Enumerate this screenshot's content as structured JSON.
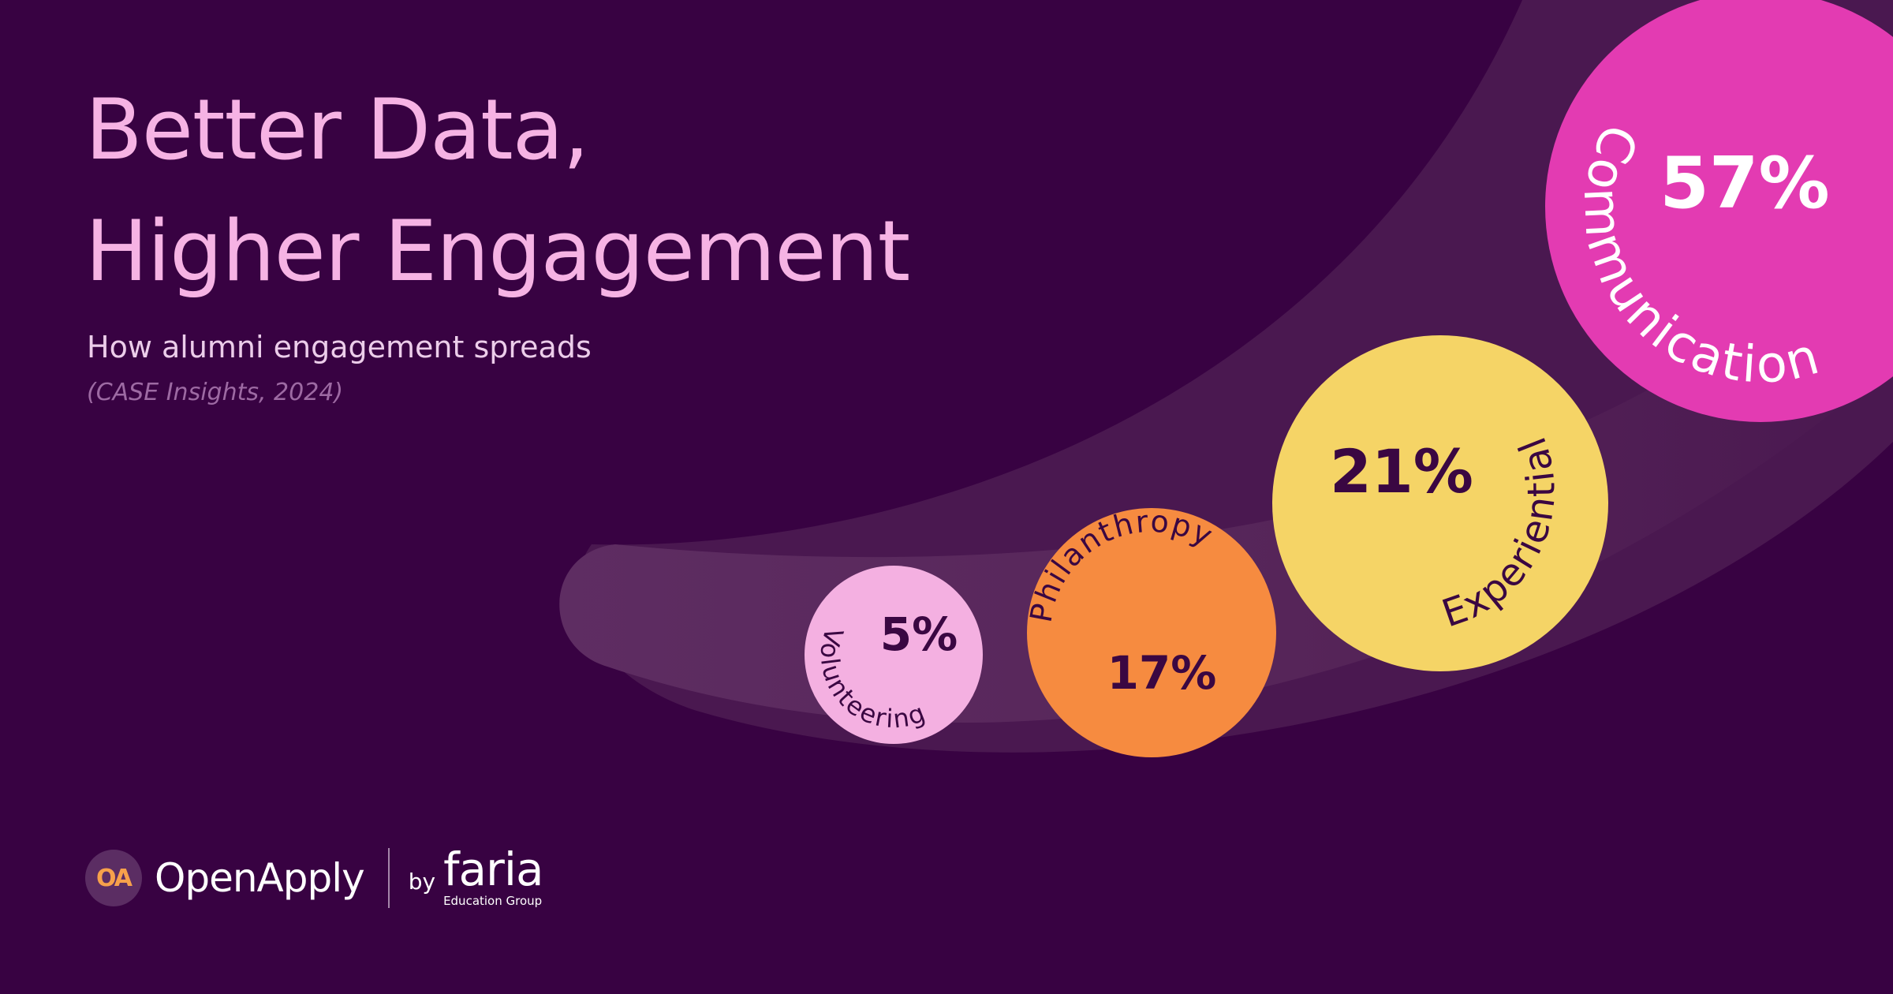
{
  "title_lines": [
    "Better Data,",
    "Higher Engagement"
  ],
  "subtitle": "How alumni engagement spreads",
  "source": "(CASE Insights, 2024)",
  "chart_data": {
    "type": "bubble",
    "title": "",
    "categories": [
      "Volunteering",
      "Philanthropy",
      "Experiential",
      "Communication"
    ],
    "values": [
      5,
      17,
      21,
      57
    ],
    "value_labels": [
      "5%",
      "17%",
      "21%",
      "57%"
    ],
    "unit": "%",
    "colors": [
      "#f4b0e1",
      "#f68b40",
      "#f5d466",
      "#e33bb2"
    ],
    "label_colors": [
      "#3a0742",
      "#3a0742",
      "#3a0742",
      "#ffffff"
    ],
    "legend": "none",
    "grid": false
  },
  "footer": {
    "brand_badge": "OA",
    "brand_name": "OpenApply",
    "by": "by",
    "partner_name": "faria",
    "partner_sub": "Education Group"
  },
  "colors": {
    "background": "#380242",
    "title": "#f6b3e4",
    "subtitle": "#eccdea",
    "source": "#9d6aa3",
    "swoosh": "#5b2b5e",
    "swoosh_outer": "#4a1850"
  }
}
